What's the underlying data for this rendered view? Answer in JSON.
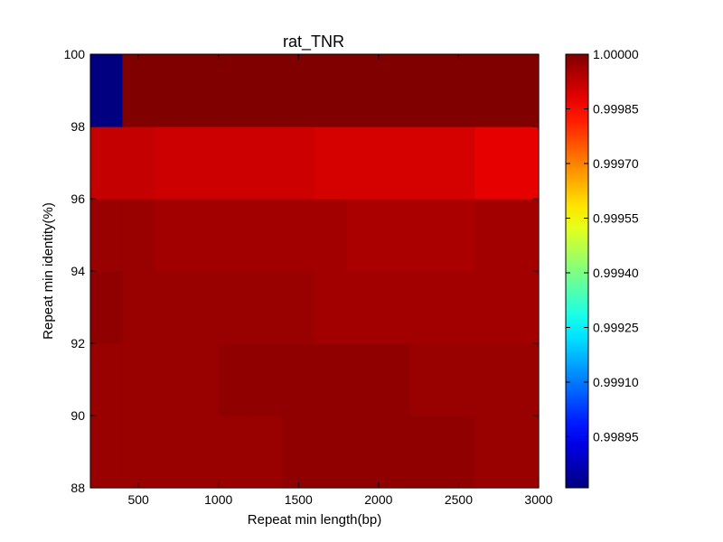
{
  "chart_data": {
    "type": "heatmap",
    "title": "rat_TNR",
    "xlabel": "Repeat min length(bp)",
    "ylabel": "Repeat min identity(%)",
    "xlim": [
      200,
      3000
    ],
    "ylim": [
      88,
      100
    ],
    "x_ticks": [
      500,
      1000,
      1500,
      2000,
      2500,
      3000
    ],
    "y_ticks": [
      88,
      90,
      92,
      94,
      96,
      98,
      100
    ],
    "x_edges": [
      200,
      400,
      600,
      800,
      1000,
      1200,
      1400,
      1600,
      1800,
      2000,
      2200,
      2400,
      2600,
      2800,
      3000
    ],
    "y_edges": [
      88,
      90,
      92,
      94,
      96,
      98,
      100
    ],
    "colorscale": "jet",
    "colorbar": {
      "min": 0.99881,
      "max": 1.0,
      "ticks": [
        0.99895,
        0.9991,
        0.99925,
        0.9994,
        0.99955,
        0.9997,
        0.99985,
        1.0
      ],
      "tick_labels": [
        "0.99895",
        "0.99910",
        "0.99925",
        "0.99940",
        "0.99955",
        "0.99970",
        "0.99985",
        "1.00000"
      ]
    },
    "rows": [
      {
        "identity": [
          88,
          90
        ],
        "values": [
          0.99997,
          0.99997,
          0.99997,
          0.99997,
          0.99997,
          0.99997,
          0.99998,
          0.99998,
          0.99998,
          0.99998,
          0.99998,
          0.99998,
          0.99997,
          0.99997
        ]
      },
      {
        "identity": [
          90,
          92
        ],
        "values": [
          0.99997,
          0.99997,
          0.99997,
          0.99997,
          0.99998,
          0.99998,
          0.99998,
          0.99998,
          0.99998,
          0.99998,
          0.99997,
          0.99997,
          0.99997,
          0.99997
        ]
      },
      {
        "identity": [
          92,
          94
        ],
        "values": [
          0.99998,
          0.99997,
          0.99997,
          0.99997,
          0.99997,
          0.99997,
          0.99997,
          0.99996,
          0.99996,
          0.99996,
          0.99996,
          0.99996,
          0.99996,
          0.99996
        ]
      },
      {
        "identity": [
          94,
          96
        ],
        "values": [
          0.99997,
          0.99997,
          0.99996,
          0.99996,
          0.99996,
          0.99996,
          0.99996,
          0.99996,
          0.99995,
          0.99995,
          0.99995,
          0.99995,
          0.99996,
          0.99996
        ]
      },
      {
        "identity": [
          96,
          98
        ],
        "values": [
          0.99992,
          0.99992,
          0.99991,
          0.99991,
          0.99991,
          0.99991,
          0.99991,
          0.9999,
          0.9999,
          0.9999,
          0.9999,
          0.9999,
          0.99988,
          0.99988
        ]
      },
      {
        "identity": [
          98,
          100
        ],
        "values": [
          0.99881,
          1.0,
          1.0,
          1.0,
          1.0,
          1.0,
          1.0,
          1.0,
          1.0,
          1.0,
          1.0,
          1.0,
          1.0,
          1.0
        ]
      }
    ]
  }
}
